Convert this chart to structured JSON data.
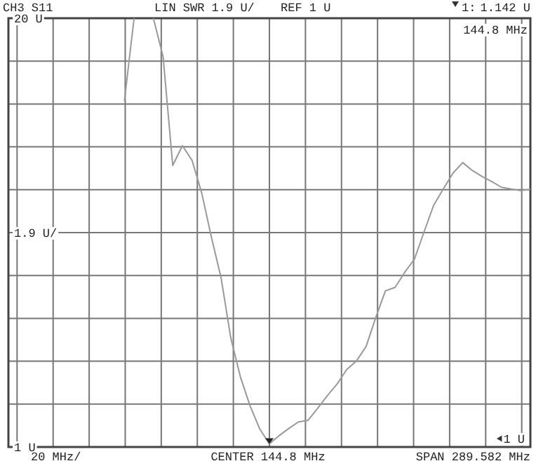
{
  "chart_data": {
    "type": "line",
    "categories": [
      null,
      null,
      null,
      null,
      null,
      null,
      null,
      null,
      null,
      null,
      null,
      null,
      null,
      null,
      null,
      null,
      null,
      null,
      null,
      null,
      null,
      null,
      null,
      null,
      null,
      null,
      null,
      null,
      null,
      null,
      null,
      null,
      null,
      null,
      null,
      null,
      null,
      null,
      null,
      null,
      null,
      null,
      null
    ],
    "series": [
      {
        "color": "#999999",
        "values": [
          16.34,
          20,
          null,
          null,
          null,
          null,
          null,
          null,
          null,
          null,
          null,
          null,
          null,
          null,
          null,
          null,
          null,
          null,
          null,
          null,
          null,
          null,
          null,
          null,
          null,
          null,
          null,
          null,
          null,
          null,
          null,
          null,
          null,
          null,
          null,
          null,
          null,
          null,
          null,
          null,
          null,
          null,
          null
        ]
      },
      {
        "color": "#999999",
        "values": [
          null,
          null,
          null,
          20,
          18.3,
          13.48,
          14.35,
          13.7,
          12.25,
          10.3,
          8.5,
          5.84,
          4.11,
          2.82,
          1.8,
          1.14,
          1.5,
          1.82,
          2.11,
          2.18,
          2.72,
          3.28,
          3.79,
          4.43,
          4.81,
          5.45,
          6.73,
          7.92,
          8.07,
          8.74,
          9.32,
          10.53,
          11.72,
          12.44,
          13.14,
          13.6,
          13.25,
          12.99,
          12.76,
          12.51,
          12.43,
          12.36,
          12.42
        ]
      }
    ],
    "ylim": [
      1,
      20
    ],
    "yticks": [
      {
        "value": 1,
        "label": "1 U"
      },
      {
        "value": 2.9,
        "label": null
      },
      {
        "value": 4.8,
        "label": null
      },
      {
        "value": 6.7,
        "label": null
      },
      {
        "value": 8.6,
        "label": null
      },
      {
        "value": 10.5,
        "label": null
      },
      {
        "value": 12.4,
        "label": null
      },
      {
        "value": 14.3,
        "label": null
      },
      {
        "value": 16.2,
        "label": null
      },
      {
        "value": 18.1,
        "label": null
      },
      {
        "value": 20,
        "label": "20 U"
      }
    ],
    "grid": true,
    "annotations": [
      "CH3 S11",
      "LIN SWR 1.9 U/",
      "REF 1 U",
      "1:",
      "1.142 U",
      "144.8 MHz",
      "20 MHz/",
      "CENTER 144.8 MHz",
      "SPAN 289.582 MHz",
      "1.9 U/",
      "1 U"
    ]
  }
}
